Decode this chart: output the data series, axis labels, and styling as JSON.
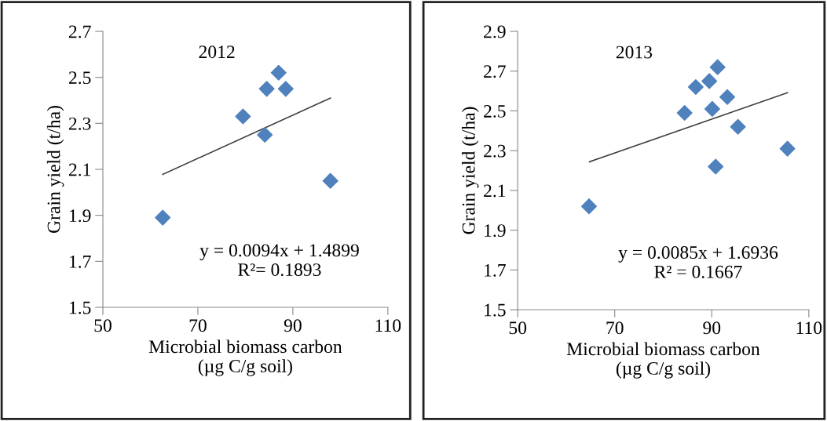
{
  "chart_data": [
    {
      "type": "scatter",
      "title": "2012",
      "xlabel": "Microbial biomass carbon\n(µg C/g soil)",
      "ylabel": "Grain yield (t/ha)",
      "series": [
        {
          "color": "#4f81bd",
          "marker": "diamond",
          "x": [
            62.6,
            79.5,
            84.1,
            84.5,
            87.0,
            88.5,
            97.9
          ],
          "values": [
            1.89,
            2.33,
            2.25,
            2.45,
            2.52,
            2.45,
            2.05
          ]
        },
        {
          "type": "line",
          "color": "#404040",
          "marker": "none",
          "line_style": "solid",
          "x": [
            62.6,
            97.9
          ],
          "values": [
            2.078,
            2.41
          ]
        }
      ],
      "xlim": [
        50,
        110
      ],
      "xticks": [
        50,
        70,
        90,
        110
      ],
      "ylim": [
        1.5,
        2.7
      ],
      "yticks": [
        {
          "value": 1.5,
          "label": "1.5"
        },
        {
          "value": 1.7,
          "label": "1.7"
        },
        {
          "value": 1.9,
          "label": "1.9"
        },
        {
          "value": 2.1,
          "label": "2.1"
        },
        {
          "value": 2.3,
          "label": "2.3"
        },
        {
          "value": 2.5,
          "label": "2.5"
        },
        {
          "value": 2.7,
          "label": "2.7"
        }
      ],
      "grid": false,
      "legend": false,
      "annotations": [
        "y = 0.0094x + 1.4899\nR²= 0.1893"
      ]
    },
    {
      "type": "scatter",
      "title": "2013",
      "xlabel": "Microbial biomass carbon\n(µg C/g soil)",
      "ylabel": "Grain yield (t/ha)",
      "series": [
        {
          "color": "#4f81bd",
          "marker": "diamond",
          "x": [
            64.7,
            84.4,
            86.7,
            89.5,
            91.2,
            90.1,
            93.2,
            95.4,
            90.8,
            105.6
          ],
          "values": [
            2.02,
            2.49,
            2.62,
            2.65,
            2.72,
            2.51,
            2.57,
            2.42,
            2.22,
            2.31
          ]
        },
        {
          "type": "line",
          "color": "#404040",
          "marker": "none",
          "line_style": "solid",
          "x": [
            64.8,
            105.6
          ],
          "values": [
            2.244,
            2.591
          ]
        }
      ],
      "xlim": [
        50,
        110
      ],
      "xticks": [
        50,
        70,
        90,
        110
      ],
      "ylim": [
        1.5,
        2.9
      ],
      "yticks": [
        {
          "value": 1.5,
          "label": "1.5"
        },
        {
          "value": 1.7,
          "label": "1.7"
        },
        {
          "value": 1.9,
          "label": "1.9"
        },
        {
          "value": 2.1,
          "label": "2.1"
        },
        {
          "value": 2.3,
          "label": "2.3"
        },
        {
          "value": 2.5,
          "label": "2.5"
        },
        {
          "value": 2.7,
          "label": "2.7"
        },
        {
          "value": 2.9,
          "label": "2.9"
        }
      ],
      "grid": false,
      "legend": false,
      "annotations": [
        "y = 0.0085x + 1.6936\nR² = 0.1667"
      ]
    }
  ]
}
